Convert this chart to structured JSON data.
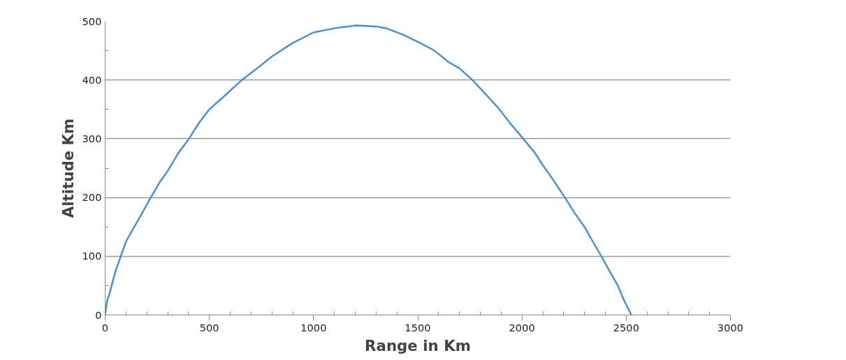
{
  "chart_data": {
    "type": "line",
    "xlabel": "Range in Km",
    "ylabel": "Altitude Km",
    "x": [
      0,
      10,
      20,
      31,
      50,
      75,
      100,
      140,
      180,
      219,
      260,
      300,
      350,
      402,
      450,
      500,
      570,
      656,
      730,
      800,
      900,
      1000,
      1100,
      1205,
      1300,
      1350,
      1430,
      1512,
      1580,
      1650,
      1700,
      1762,
      1820,
      1880,
      1940,
      2006,
      2060,
      2100,
      2150,
      2206,
      2250,
      2300,
      2340,
      2381,
      2420,
      2460,
      2490,
      2525
    ],
    "series": [
      {
        "color": "#4a90d0",
        "values": [
          0,
          25,
          35,
          50,
          75,
          100,
          125,
          150,
          175,
          200,
          225,
          245,
          275,
          300,
          327,
          350,
          372,
          400,
          420,
          440,
          463,
          481,
          488,
          493,
          491,
          488,
          477,
          463,
          450,
          430,
          420,
          400,
          378,
          355,
          328,
          300,
          277,
          255,
          230,
          200,
          175,
          150,
          125,
          100,
          75,
          50,
          25,
          0
        ]
      }
    ],
    "xlim": [
      0,
      3000
    ],
    "ylim": [
      0,
      500
    ],
    "xticks": [
      0,
      {
        "value": 100,
        "label": null
      },
      {
        "value": 200,
        "label": null
      },
      {
        "value": 300,
        "label": null
      },
      {
        "value": 400,
        "label": null
      },
      500,
      {
        "value": 600,
        "label": null
      },
      {
        "value": 700,
        "label": null
      },
      {
        "value": 800,
        "label": null
      },
      {
        "value": 900,
        "label": null
      },
      1000,
      {
        "value": 1100,
        "label": null
      },
      {
        "value": 1200,
        "label": null
      },
      {
        "value": 1300,
        "label": null
      },
      {
        "value": 1400,
        "label": null
      },
      1500,
      {
        "value": 1600,
        "label": null
      },
      {
        "value": 1700,
        "label": null
      },
      {
        "value": 1800,
        "label": null
      },
      {
        "value": 1900,
        "label": null
      },
      2000,
      {
        "value": 2100,
        "label": null
      },
      {
        "value": 2200,
        "label": null
      },
      {
        "value": 2300,
        "label": null
      },
      {
        "value": 2400,
        "label": null
      },
      2500,
      {
        "value": 2600,
        "label": null
      },
      {
        "value": 2700,
        "label": null
      },
      {
        "value": 2800,
        "label": null
      },
      {
        "value": 2900,
        "label": null
      },
      3000
    ],
    "yticks": [
      0,
      {
        "value": 50,
        "label": null
      },
      100,
      {
        "value": 150,
        "label": null
      },
      200,
      {
        "value": 250,
        "label": null
      },
      300,
      {
        "value": 350,
        "label": null
      },
      400,
      {
        "value": 450,
        "label": null
      },
      500
    ],
    "grid": "y",
    "marker": "none",
    "line_style": "solid"
  }
}
